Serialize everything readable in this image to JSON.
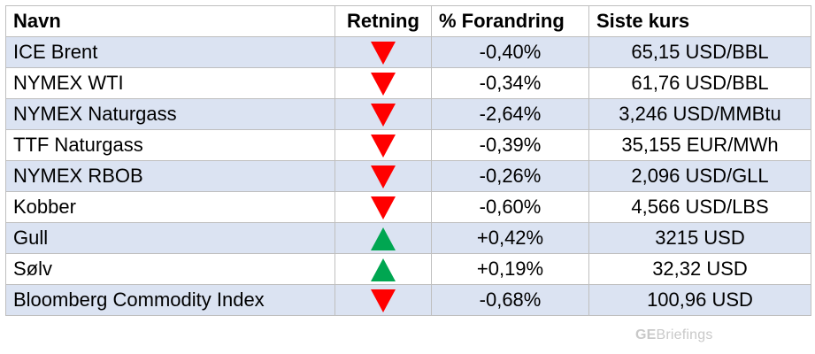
{
  "table": {
    "headers": {
      "name": "Navn",
      "direction": "Retning",
      "change": "% Forandring",
      "price": "Siste kurs"
    },
    "rows": [
      {
        "name": "ICE Brent",
        "direction": "down",
        "change": "-0,40%",
        "price": "65,15 USD/BBL"
      },
      {
        "name": "NYMEX WTI",
        "direction": "down",
        "change": "-0,34%",
        "price": "61,76 USD/BBL"
      },
      {
        "name": "NYMEX Naturgass",
        "direction": "down",
        "change": "-2,64%",
        "price": "3,246 USD/MMBtu"
      },
      {
        "name": "TTF Naturgass",
        "direction": "down",
        "change": "-0,39%",
        "price": "35,155 EUR/MWh"
      },
      {
        "name": "NYMEX RBOB",
        "direction": "down",
        "change": "-0,26%",
        "price": "2,096 USD/GLL"
      },
      {
        "name": "Kobber",
        "direction": "down",
        "change": "-0,60%",
        "price": "4,566 USD/LBS"
      },
      {
        "name": "Gull",
        "direction": "up",
        "change": "+0,42%",
        "price": "3215 USD"
      },
      {
        "name": "Sølv",
        "direction": "up",
        "change": "+0,19%",
        "price": "32,32 USD"
      },
      {
        "name": "Bloomberg Commodity Index",
        "direction": "down",
        "change": "-0,68%",
        "price": "100,96 USD"
      }
    ],
    "colors": {
      "down": "#ff0000",
      "up": "#00a651",
      "shaded_row": "#dbe3f2",
      "border": "#bfbfbf"
    }
  },
  "brand": {
    "prefix": "GE",
    "suffix": "Briefings"
  }
}
